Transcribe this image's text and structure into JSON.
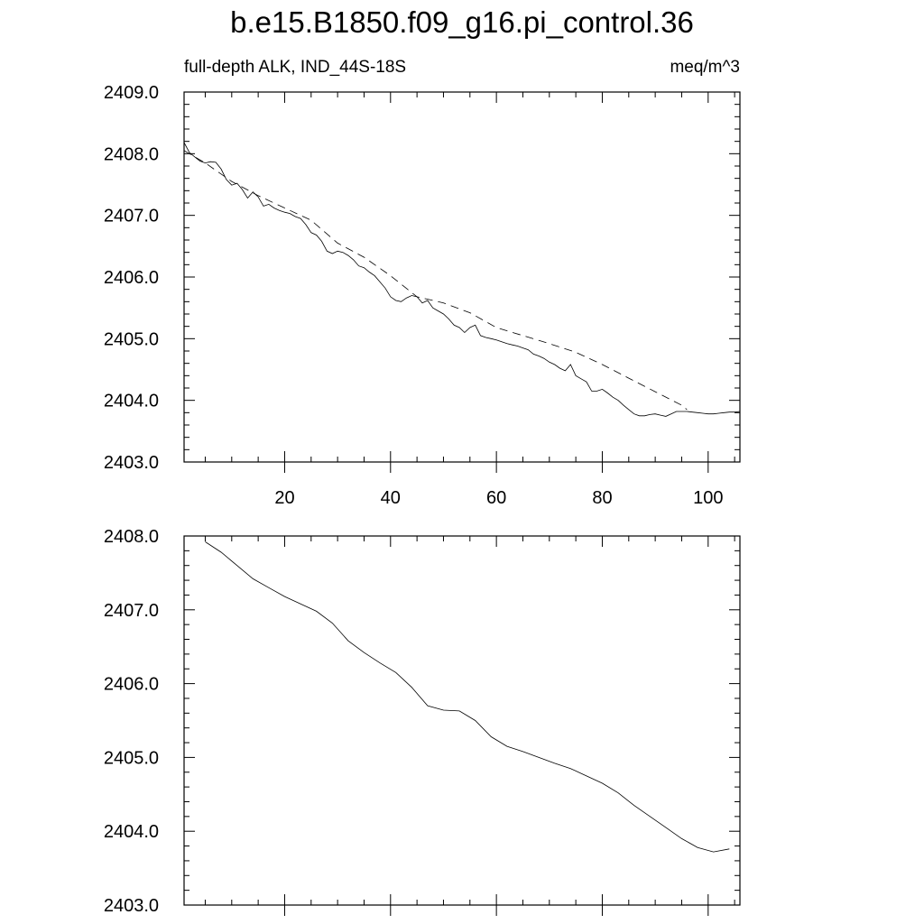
{
  "title": "b.e15.B1850.f09_g16.pi_control.36",
  "chart_data": [
    {
      "type": "line",
      "title": "",
      "left_label": "full-depth ALK, IND_44S-18S",
      "right_label": "meq/m^3",
      "xlabel": "",
      "ylabel": "",
      "xlim": [
        1,
        106
      ],
      "ylim": [
        2403.0,
        2409.0
      ],
      "y_ticks": [
        "2403.0",
        "2404.0",
        "2405.0",
        "2406.0",
        "2407.0",
        "2408.0",
        "2409.0"
      ],
      "x_ticks": [
        "20",
        "40",
        "60",
        "80",
        "100"
      ],
      "grid": false,
      "series": [
        {
          "style": "solid",
          "x": [
            1,
            2,
            3,
            4,
            5,
            6,
            7,
            8,
            9,
            10,
            11,
            12,
            13,
            14,
            15,
            16,
            17,
            18,
            19,
            20,
            21,
            22,
            23,
            24,
            25,
            26,
            27,
            28,
            29,
            30,
            31,
            32,
            33,
            34,
            35,
            36,
            37,
            38,
            39,
            40,
            41,
            42,
            43,
            44,
            45,
            46,
            47,
            48,
            49,
            50,
            51,
            52,
            53,
            54,
            55,
            56,
            57,
            58,
            59,
            60,
            61,
            62,
            63,
            64,
            65,
            66,
            67,
            68,
            69,
            70,
            71,
            72,
            73,
            74,
            75,
            76,
            77,
            78,
            79,
            80,
            81,
            82,
            83,
            84,
            85,
            86,
            87,
            88,
            89,
            90,
            91,
            92,
            93,
            94,
            95,
            96,
            97,
            98,
            99,
            100,
            101,
            102,
            103,
            104,
            105,
            106
          ],
          "y": [
            2408.18,
            2408.02,
            2407.95,
            2407.88,
            2407.85,
            2407.87,
            2407.86,
            2407.75,
            2407.58,
            2407.49,
            2407.52,
            2407.42,
            2407.28,
            2407.38,
            2407.3,
            2407.15,
            2407.18,
            2407.12,
            2407.08,
            2407.05,
            2407.03,
            2406.98,
            2406.95,
            2406.85,
            2406.72,
            2406.68,
            2406.58,
            2406.42,
            2406.38,
            2406.42,
            2406.4,
            2406.35,
            2406.28,
            2406.18,
            2406.15,
            2406.08,
            2406.02,
            2405.92,
            2405.82,
            2405.68,
            2405.62,
            2405.6,
            2405.66,
            2405.7,
            2405.68,
            2405.58,
            2405.62,
            2405.5,
            2405.45,
            2405.4,
            2405.32,
            2405.22,
            2405.18,
            2405.1,
            2405.18,
            2405.22,
            2405.05,
            2405.02,
            2405.0,
            2404.98,
            2404.95,
            2404.92,
            2404.9,
            2404.88,
            2404.85,
            2404.82,
            2404.75,
            2404.72,
            2404.68,
            2404.62,
            2404.58,
            2404.52,
            2404.48,
            2404.58,
            2404.4,
            2404.35,
            2404.3,
            2404.15,
            2404.15,
            2404.18,
            2404.12,
            2404.05,
            2404.0,
            2403.92,
            2403.85,
            2403.78,
            2403.75,
            2403.75,
            2403.77,
            2403.78,
            2403.76,
            2403.74,
            2403.78,
            2403.82,
            2403.82,
            2403.82,
            2403.81,
            2403.8,
            2403.79,
            2403.78,
            2403.78,
            2403.79,
            2403.8,
            2403.81,
            2403.81,
            2403.82
          ]
        },
        {
          "style": "dashed",
          "x": [
            1,
            5,
            10,
            15,
            20,
            25,
            30,
            35,
            40,
            45,
            50,
            55,
            60,
            65,
            70,
            75,
            80,
            85,
            90,
            95,
            96
          ],
          "y": [
            2408.05,
            2407.85,
            2407.55,
            2407.32,
            2407.12,
            2406.92,
            2406.55,
            2406.32,
            2406.02,
            2405.68,
            2405.58,
            2405.42,
            2405.18,
            2405.05,
            2404.92,
            2404.78,
            2404.58,
            2404.36,
            2404.14,
            2403.92,
            2403.85
          ]
        }
      ]
    },
    {
      "type": "line",
      "title": "",
      "xlabel": "",
      "ylabel": "",
      "xlim": [
        1,
        106
      ],
      "ylim": [
        2403.0,
        2408.0
      ],
      "y_ticks": [
        "2403.0",
        "2404.0",
        "2405.0",
        "2406.0",
        "2407.0",
        "2408.0"
      ],
      "x_ticks": [],
      "grid": false,
      "series": [
        {
          "style": "solid",
          "x": [
            5,
            8,
            11,
            14,
            17,
            20,
            23,
            26,
            29,
            32,
            35,
            38,
            41,
            44,
            47,
            50,
            53,
            56,
            59,
            62,
            65,
            68,
            71,
            74,
            77,
            80,
            83,
            86,
            89,
            92,
            95,
            98,
            101,
            104
          ],
          "y": [
            2407.92,
            2407.78,
            2407.6,
            2407.42,
            2407.3,
            2407.18,
            2407.08,
            2406.98,
            2406.82,
            2406.58,
            2406.42,
            2406.28,
            2406.15,
            2405.95,
            2405.7,
            2405.64,
            2405.63,
            2405.5,
            2405.28,
            2405.15,
            2405.08,
            2405.0,
            2404.92,
            2404.85,
            2404.75,
            2404.65,
            2404.52,
            2404.35,
            2404.2,
            2404.05,
            2403.9,
            2403.78,
            2403.72,
            2403.76
          ]
        }
      ]
    }
  ]
}
